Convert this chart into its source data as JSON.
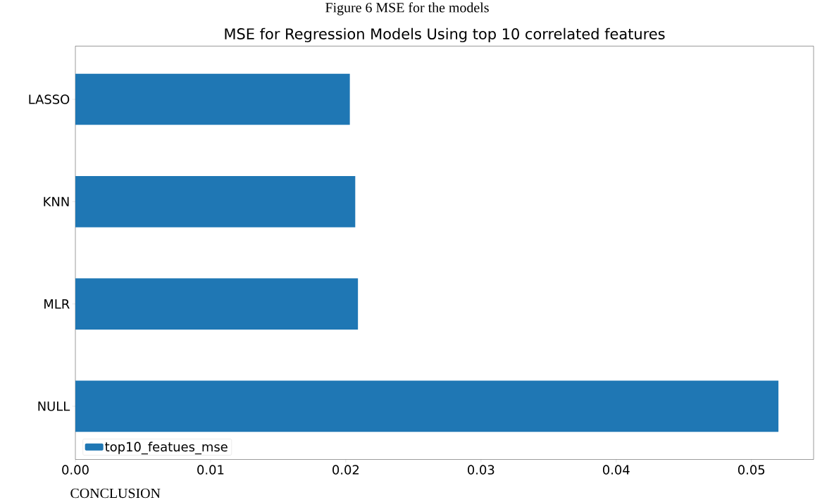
{
  "chart_data": {
    "type": "bar",
    "orientation": "horizontal",
    "title": "MSE for Regression Models Using top 10 correlated features",
    "annotations": [
      "Figure 6 MSE for the models",
      "CONCLUSION"
    ],
    "categories": [
      "LASSO",
      "KNN",
      "MLR",
      "NULL"
    ],
    "series": [
      {
        "name": "top10_featues_mse",
        "color": "#1f77b4",
        "values": [
          0.0203,
          0.0207,
          0.0209,
          0.052
        ]
      }
    ],
    "xlim": [
      0,
      0.0546
    ],
    "xticks": [
      {
        "value": 0,
        "label": "0.00"
      },
      {
        "value": 0.01,
        "label": "0.01"
      },
      {
        "value": 0.02,
        "label": "0.02"
      },
      {
        "value": 0.03,
        "label": "0.03"
      },
      {
        "value": 0.04,
        "label": "0.04"
      },
      {
        "value": 0.05,
        "label": "0.05"
      }
    ],
    "legend": "bottom left",
    "grid": false
  }
}
